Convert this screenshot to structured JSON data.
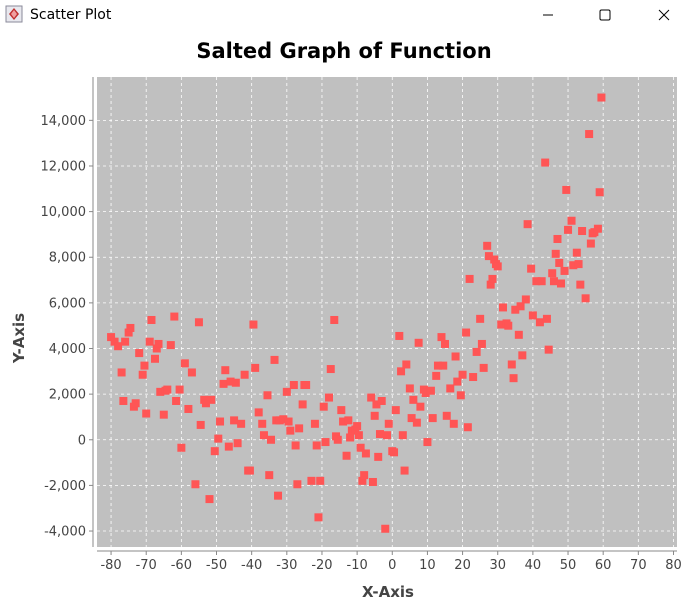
{
  "window": {
    "title": "Scatter Plot",
    "icons": {
      "app": "java-app-icon",
      "minimize": "minimize-icon",
      "maximize": "maximize-icon",
      "close": "close-icon"
    }
  },
  "chart_data": {
    "type": "scatter",
    "title": "Salted Graph of Function",
    "xlabel": "X-Axis",
    "ylabel": "Y-Axis",
    "xlim": [
      -84,
      81
    ],
    "ylim": [
      -4700,
      15900
    ],
    "xticks": [
      -80,
      -70,
      -60,
      -50,
      -40,
      -30,
      -20,
      -10,
      0,
      10,
      20,
      30,
      40,
      50,
      60,
      70,
      80
    ],
    "yticks": [
      -4000,
      -2000,
      0,
      2000,
      4000,
      6000,
      8000,
      10000,
      12000,
      14000
    ],
    "xtick_labels": [
      "-80",
      "-70",
      "-60",
      "-50",
      "-40",
      "-30",
      "-20",
      "-10",
      "0",
      "10",
      "20",
      "30",
      "40",
      "50",
      "60",
      "70",
      "80"
    ],
    "ytick_labels": [
      "-4,000",
      "-2,000",
      "0",
      "2,000",
      "4,000",
      "6,000",
      "8,000",
      "10,000",
      "12,000",
      "14,000"
    ],
    "grid": true,
    "background": "#c0c0c0",
    "marker_color": "#ff5555",
    "marker": "square",
    "points": [
      [
        -80,
        4500
      ],
      [
        -79,
        4300
      ],
      [
        -78,
        4100
      ],
      [
        -77,
        2950
      ],
      [
        -76.5,
        1700
      ],
      [
        -76,
        4300
      ],
      [
        -75,
        4700
      ],
      [
        -74.5,
        4900
      ],
      [
        -73.5,
        1450
      ],
      [
        -73,
        1600
      ],
      [
        -72,
        3800
      ],
      [
        -71,
        2850
      ],
      [
        -70.5,
        3250
      ],
      [
        -70,
        1150
      ],
      [
        -69,
        4300
      ],
      [
        -68.5,
        5250
      ],
      [
        -67.5,
        3550
      ],
      [
        -67,
        4000
      ],
      [
        -66.5,
        4200
      ],
      [
        -66,
        2100
      ],
      [
        -65,
        1100
      ],
      [
        -64.5,
        2150
      ],
      [
        -64,
        2200
      ],
      [
        -63,
        4150
      ],
      [
        -62,
        5400
      ],
      [
        -61.5,
        1700
      ],
      [
        -60.5,
        2200
      ],
      [
        -60,
        -350
      ],
      [
        -59,
        3350
      ],
      [
        -58,
        1350
      ],
      [
        -57,
        2950
      ],
      [
        -56,
        -1950
      ],
      [
        -55,
        5150
      ],
      [
        -54.5,
        650
      ],
      [
        -53.5,
        1750
      ],
      [
        -53,
        1600
      ],
      [
        -52,
        -2600
      ],
      [
        -51.5,
        1750
      ],
      [
        -50.5,
        -500
      ],
      [
        -49.5,
        50
      ],
      [
        -49,
        800
      ],
      [
        -48,
        2450
      ],
      [
        -47.5,
        3050
      ],
      [
        -46.5,
        -300
      ],
      [
        -46,
        2550
      ],
      [
        -45,
        850
      ],
      [
        -44.5,
        2500
      ],
      [
        -44,
        -150
      ],
      [
        -43,
        700
      ],
      [
        -42,
        2850
      ],
      [
        -41,
        -1350
      ],
      [
        -40.5,
        -1350
      ],
      [
        -39.5,
        5050
      ],
      [
        -39,
        3150
      ],
      [
        -38,
        1200
      ],
      [
        -37,
        700
      ],
      [
        -36.5,
        200
      ],
      [
        -35.5,
        1950
      ],
      [
        -35,
        -1550
      ],
      [
        -34.5,
        0
      ],
      [
        -33.5,
        3500
      ],
      [
        -33,
        850
      ],
      [
        -32.5,
        -2450
      ],
      [
        -32,
        850
      ],
      [
        -31,
        900
      ],
      [
        -30,
        2100
      ],
      [
        -29.5,
        800
      ],
      [
        -29,
        400
      ],
      [
        -28,
        2400
      ],
      [
        -27.5,
        -250
      ],
      [
        -27,
        -1950
      ],
      [
        -26.5,
        500
      ],
      [
        -25.5,
        1550
      ],
      [
        -25,
        2400
      ],
      [
        -24.5,
        2400
      ],
      [
        -23,
        -1800
      ],
      [
        -22,
        700
      ],
      [
        -21.5,
        -250
      ],
      [
        -21,
        -3400
      ],
      [
        -20.5,
        -1800
      ],
      [
        -19.5,
        1450
      ],
      [
        -19,
        -100
      ],
      [
        -18,
        1850
      ],
      [
        -17.5,
        3100
      ],
      [
        -16.5,
        5250
      ],
      [
        -16,
        150
      ],
      [
        -15.5,
        0
      ],
      [
        -14.5,
        1300
      ],
      [
        -14,
        800
      ],
      [
        -13,
        -700
      ],
      [
        -12.5,
        850
      ],
      [
        -12,
        100
      ],
      [
        -11.5,
        400
      ],
      [
        -10.5,
        450
      ],
      [
        -10,
        600
      ],
      [
        -9.5,
        200
      ],
      [
        -9,
        -350
      ],
      [
        -8.5,
        -1800
      ],
      [
        -8,
        -1550
      ],
      [
        -7.5,
        -600
      ],
      [
        -6,
        1850
      ],
      [
        -5.5,
        -1850
      ],
      [
        -5,
        1050
      ],
      [
        -4.5,
        1550
      ],
      [
        -4,
        -750
      ],
      [
        -3.5,
        250
      ],
      [
        -3,
        1700
      ],
      [
        -2,
        -3900
      ],
      [
        -1.5,
        200
      ],
      [
        -1,
        700
      ],
      [
        0,
        -500
      ],
      [
        0.5,
        -550
      ],
      [
        1,
        1300
      ],
      [
        2,
        4550
      ],
      [
        2.5,
        3000
      ],
      [
        3,
        200
      ],
      [
        3.5,
        -1350
      ],
      [
        4,
        3300
      ],
      [
        5,
        2250
      ],
      [
        5.5,
        950
      ],
      [
        6,
        1750
      ],
      [
        7,
        750
      ],
      [
        7.5,
        4250
      ],
      [
        8,
        1450
      ],
      [
        9,
        2200
      ],
      [
        9.5,
        2050
      ],
      [
        10,
        -100
      ],
      [
        11,
        2150
      ],
      [
        11.5,
        950
      ],
      [
        12.5,
        2800
      ],
      [
        13,
        3250
      ],
      [
        14,
        4500
      ],
      [
        14.5,
        3250
      ],
      [
        15,
        4200
      ],
      [
        15.5,
        1050
      ],
      [
        16.5,
        2250
      ],
      [
        17.5,
        700
      ],
      [
        18,
        3650
      ],
      [
        18.5,
        2550
      ],
      [
        19.5,
        1950
      ],
      [
        20,
        2850
      ],
      [
        21,
        4700
      ],
      [
        21.5,
        550
      ],
      [
        22,
        7050
      ],
      [
        23,
        2750
      ],
      [
        24,
        3850
      ],
      [
        25,
        5300
      ],
      [
        25.5,
        4200
      ],
      [
        26,
        3150
      ],
      [
        27,
        8500
      ],
      [
        27.5,
        8050
      ],
      [
        28,
        6800
      ],
      [
        28.5,
        7050
      ],
      [
        29,
        7900
      ],
      [
        29.5,
        7700
      ],
      [
        30,
        7600
      ],
      [
        31,
        5050
      ],
      [
        31.5,
        5800
      ],
      [
        32.5,
        5100
      ],
      [
        33,
        5000
      ],
      [
        34,
        3300
      ],
      [
        34.5,
        2700
      ],
      [
        35,
        5700
      ],
      [
        36,
        4600
      ],
      [
        36.5,
        5850
      ],
      [
        37,
        3700
      ],
      [
        38,
        6150
      ],
      [
        38.5,
        9450
      ],
      [
        39.5,
        7500
      ],
      [
        40,
        5450
      ],
      [
        41,
        6950
      ],
      [
        42,
        5150
      ],
      [
        42.5,
        6950
      ],
      [
        43.5,
        12150
      ],
      [
        44,
        5300
      ],
      [
        44.5,
        3950
      ],
      [
        45.5,
        7300
      ],
      [
        46,
        6950
      ],
      [
        46.5,
        8150
      ],
      [
        47,
        8800
      ],
      [
        47.5,
        7750
      ],
      [
        48,
        6850
      ],
      [
        49,
        7400
      ],
      [
        49.5,
        10950
      ],
      [
        50,
        9200
      ],
      [
        51,
        9600
      ],
      [
        51.5,
        7650
      ],
      [
        52.5,
        8200
      ],
      [
        53,
        7700
      ],
      [
        53.5,
        6800
      ],
      [
        54,
        9150
      ],
      [
        55,
        6200
      ],
      [
        56,
        13400
      ],
      [
        56.5,
        8600
      ],
      [
        57,
        9050
      ],
      [
        57.5,
        9100
      ],
      [
        58.5,
        9250
      ],
      [
        59,
        10850
      ],
      [
        59.5,
        15000
      ]
    ]
  }
}
